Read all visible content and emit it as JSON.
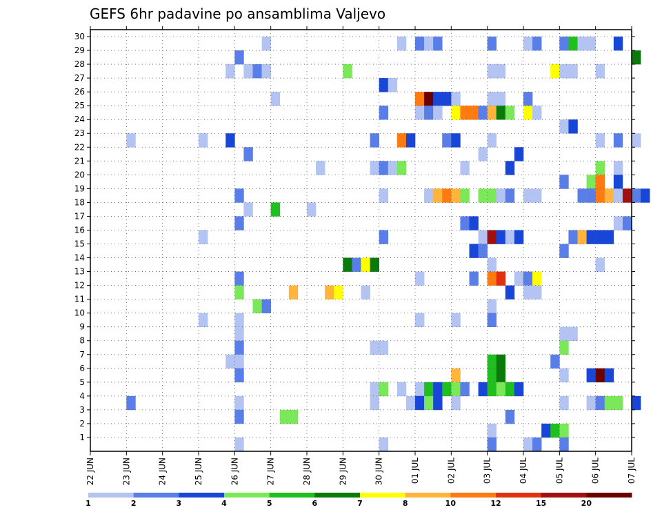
{
  "chart_data": {
    "type": "heatmap",
    "title": "GEFS 6hr padavine po ansamblima Valjevo",
    "y_ticks": [
      "1",
      "2",
      "3",
      "4",
      "5",
      "6",
      "7",
      "8",
      "9",
      "10",
      "11",
      "12",
      "13",
      "14",
      "15",
      "16",
      "17",
      "18",
      "19",
      "20",
      "21",
      "22",
      "23",
      "24",
      "25",
      "26",
      "27",
      "28",
      "29",
      "30"
    ],
    "x_ticks": [
      "22 JUN",
      "23 JUN",
      "24 JUN",
      "25 JUN",
      "26 JUN",
      "27 JUN",
      "28 JUN",
      "29 JUN",
      "30 JUN",
      "01 JUL",
      "02 JUL",
      "03 JUL",
      "04 JUL",
      "05 JUL",
      "06 JUL",
      "07 JUL"
    ],
    "x_step": "6 h",
    "colorbar": {
      "labels": [
        "1",
        "2",
        "3",
        "4",
        "5",
        "6",
        "7",
        "8",
        "10",
        "12",
        "15",
        "20"
      ],
      "colors": [
        "#b3c3f2",
        "#5a7ee8",
        "#1846d6",
        "#7be85a",
        "#1fbf1f",
        "#0a7a0a",
        "#ffff00",
        "#ffb43c",
        "#ff7a10",
        "#e03010",
        "#a01010",
        "#6b0000"
      ]
    },
    "grid": true,
    "cells": [
      {
        "m": 30,
        "x": "26 JUN 18z",
        "v": 1
      },
      {
        "m": 30,
        "x": "30 JUN 12z",
        "v": 1
      },
      {
        "m": 30,
        "x": "01 JUL 00z",
        "v": 2
      },
      {
        "m": 30,
        "x": "01 JUL 06z",
        "v": 1
      },
      {
        "m": 30,
        "x": "01 JUL 12z",
        "v": 2
      },
      {
        "m": 30,
        "x": "03 JUL 00z",
        "v": 2
      },
      {
        "m": 30,
        "x": "04 JUL 00z",
        "v": 1
      },
      {
        "m": 30,
        "x": "04 JUL 06z",
        "v": 2
      },
      {
        "m": 30,
        "x": "05 JUL 00z",
        "v": 2
      },
      {
        "m": 30,
        "x": "05 JUL 06z",
        "v": 5
      },
      {
        "m": 30,
        "x": "05 JUL 12z",
        "v": 1
      },
      {
        "m": 30,
        "x": "05 JUL 18z",
        "v": 1
      },
      {
        "m": 30,
        "x": "06 JUL 12z",
        "v": 3
      },
      {
        "m": 29,
        "x": "26 JUN 00z",
        "v": 2
      },
      {
        "m": 29,
        "x": "07 JUL 00z",
        "v": 6
      },
      {
        "m": 28,
        "x": "25 JUN 18z",
        "v": 1
      },
      {
        "m": 28,
        "x": "26 JUN 06z",
        "v": 1
      },
      {
        "m": 28,
        "x": "26 JUN 12z",
        "v": 2
      },
      {
        "m": 28,
        "x": "26 JUN 18z",
        "v": 1
      },
      {
        "m": 28,
        "x": "29 JUN 00z",
        "v": 4
      },
      {
        "m": 28,
        "x": "03 JUL 00z",
        "v": 1
      },
      {
        "m": 28,
        "x": "03 JUL 06z",
        "v": 1
      },
      {
        "m": 28,
        "x": "04 JUL 18z",
        "v": 7
      },
      {
        "m": 28,
        "x": "05 JUL 00z",
        "v": 1
      },
      {
        "m": 28,
        "x": "05 JUL 06z",
        "v": 1
      },
      {
        "m": 28,
        "x": "06 JUL 00z",
        "v": 1
      },
      {
        "m": 27,
        "x": "30 JUN 00z",
        "v": 3
      },
      {
        "m": 27,
        "x": "30 JUN 06z",
        "v": 1
      },
      {
        "m": 26,
        "x": "27 JUN 00z",
        "v": 1
      },
      {
        "m": 26,
        "x": "01 JUL 00z",
        "v": 9
      },
      {
        "m": 26,
        "x": "01 JUL 06z",
        "v": 12
      },
      {
        "m": 26,
        "x": "01 JUL 12z",
        "v": 3
      },
      {
        "m": 26,
        "x": "01 JUL 18z",
        "v": 3
      },
      {
        "m": 26,
        "x": "02 JUL 00z",
        "v": 1
      },
      {
        "m": 26,
        "x": "03 JUL 00z",
        "v": 1
      },
      {
        "m": 26,
        "x": "03 JUL 06z",
        "v": 1
      },
      {
        "m": 26,
        "x": "04 JUL 00z",
        "v": 2
      },
      {
        "m": 25,
        "x": "30 JUN 00z",
        "v": 2
      },
      {
        "m": 25,
        "x": "01 JUL 00z",
        "v": 1
      },
      {
        "m": 25,
        "x": "01 JUL 06z",
        "v": 2
      },
      {
        "m": 25,
        "x": "01 JUL 12z",
        "v": 1
      },
      {
        "m": 25,
        "x": "02 JUL 00z",
        "v": 7
      },
      {
        "m": 25,
        "x": "02 JUL 06z",
        "v": 9
      },
      {
        "m": 25,
        "x": "02 JUL 12z",
        "v": 9
      },
      {
        "m": 25,
        "x": "02 JUL 18z",
        "v": 2
      },
      {
        "m": 25,
        "x": "03 JUL 00z",
        "v": 8
      },
      {
        "m": 25,
        "x": "03 JUL 06z",
        "v": 6
      },
      {
        "m": 25,
        "x": "03 JUL 12z",
        "v": 4
      },
      {
        "m": 25,
        "x": "04 JUL 00z",
        "v": 7
      },
      {
        "m": 25,
        "x": "04 JUL 06z",
        "v": 1
      },
      {
        "m": 24,
        "x": "05 JUL 00z",
        "v": 1
      },
      {
        "m": 24,
        "x": "05 JUL 06z",
        "v": 3
      },
      {
        "m": 23,
        "x": "23 JUN 00z",
        "v": 1
      },
      {
        "m": 23,
        "x": "25 JUN 00z",
        "v": 1
      },
      {
        "m": 23,
        "x": "25 JUN 18z",
        "v": 3
      },
      {
        "m": 23,
        "x": "29 JUN 18z",
        "v": 2
      },
      {
        "m": 23,
        "x": "30 JUN 12z",
        "v": 9
      },
      {
        "m": 23,
        "x": "30 JUN 18z",
        "v": 3
      },
      {
        "m": 23,
        "x": "01 JUL 18z",
        "v": 2
      },
      {
        "m": 23,
        "x": "02 JUL 00z",
        "v": 3
      },
      {
        "m": 23,
        "x": "03 JUL 00z",
        "v": 1
      },
      {
        "m": 23,
        "x": "06 JUL 00z",
        "v": 1
      },
      {
        "m": 23,
        "x": "06 JUL 12z",
        "v": 2
      },
      {
        "m": 23,
        "x": "07 JUL 00z",
        "v": 1
      },
      {
        "m": 22,
        "x": "26 JUN 06z",
        "v": 2
      },
      {
        "m": 22,
        "x": "02 JUL 18z",
        "v": 1
      },
      {
        "m": 22,
        "x": "03 JUL 18z",
        "v": 3
      },
      {
        "m": 21,
        "x": "28 JUN 06z",
        "v": 1
      },
      {
        "m": 21,
        "x": "29 JUN 18z",
        "v": 1
      },
      {
        "m": 21,
        "x": "30 JUN 00z",
        "v": 2
      },
      {
        "m": 21,
        "x": "30 JUN 06z",
        "v": 1
      },
      {
        "m": 21,
        "x": "30 JUN 12z",
        "v": 4
      },
      {
        "m": 21,
        "x": "02 JUL 06z",
        "v": 1
      },
      {
        "m": 21,
        "x": "03 JUL 12z",
        "v": 3
      },
      {
        "m": 21,
        "x": "06 JUL 00z",
        "v": 4
      },
      {
        "m": 21,
        "x": "06 JUL 12z",
        "v": 1
      },
      {
        "m": 20,
        "x": "05 JUL 00z",
        "v": 2
      },
      {
        "m": 20,
        "x": "05 JUL 18z",
        "v": 4
      },
      {
        "m": 20,
        "x": "06 JUL 00z",
        "v": 9
      },
      {
        "m": 20,
        "x": "06 JUL 12z",
        "v": 3
      },
      {
        "m": 19,
        "x": "26 JUN 00z",
        "v": 2
      },
      {
        "m": 19,
        "x": "30 JUN 00z",
        "v": 1
      },
      {
        "m": 19,
        "x": "01 JUL 06z",
        "v": 1
      },
      {
        "m": 19,
        "x": "01 JUL 12z",
        "v": 8
      },
      {
        "m": 19,
        "x": "01 JUL 18z",
        "v": 9
      },
      {
        "m": 19,
        "x": "02 JUL 00z",
        "v": 8
      },
      {
        "m": 19,
        "x": "02 JUL 06z",
        "v": 4
      },
      {
        "m": 19,
        "x": "02 JUL 18z",
        "v": 4
      },
      {
        "m": 19,
        "x": "03 JUL 00z",
        "v": 4
      },
      {
        "m": 19,
        "x": "03 JUL 06z",
        "v": 1
      },
      {
        "m": 19,
        "x": "03 JUL 12z",
        "v": 2
      },
      {
        "m": 19,
        "x": "04 JUL 00z",
        "v": 1
      },
      {
        "m": 19,
        "x": "04 JUL 06z",
        "v": 1
      },
      {
        "m": 19,
        "x": "05 JUL 12z",
        "v": 2
      },
      {
        "m": 19,
        "x": "05 JUL 18z",
        "v": 2
      },
      {
        "m": 19,
        "x": "06 JUL 00z",
        "v": 9
      },
      {
        "m": 19,
        "x": "06 JUL 06z",
        "v": 8
      },
      {
        "m": 19,
        "x": "06 JUL 12z",
        "v": 1
      },
      {
        "m": 19,
        "x": "06 JUL 18z",
        "v": 11
      },
      {
        "m": 19,
        "x": "07 JUL 00z",
        "v": 2
      },
      {
        "m": 19,
        "x": "07 JUL 06z",
        "v": 3
      },
      {
        "m": 18,
        "x": "26 JUN 06z",
        "v": 1
      },
      {
        "m": 18,
        "x": "27 JUN 00z",
        "v": 5
      },
      {
        "m": 18,
        "x": "28 JUN 00z",
        "v": 1
      },
      {
        "m": 17,
        "x": "26 JUN 00z",
        "v": 2
      },
      {
        "m": 17,
        "x": "02 JUL 06z",
        "v": 2
      },
      {
        "m": 17,
        "x": "02 JUL 12z",
        "v": 3
      },
      {
        "m": 17,
        "x": "06 JUL 12z",
        "v": 1
      },
      {
        "m": 17,
        "x": "06 JUL 18z",
        "v": 2
      },
      {
        "m": 16,
        "x": "25 JUN 00z",
        "v": 1
      },
      {
        "m": 16,
        "x": "30 JUN 00z",
        "v": 2
      },
      {
        "m": 16,
        "x": "02 JUL 18z",
        "v": 1
      },
      {
        "m": 16,
        "x": "03 JUL 00z",
        "v": 11
      },
      {
        "m": 16,
        "x": "03 JUL 06z",
        "v": 3
      },
      {
        "m": 16,
        "x": "03 JUL 12z",
        "v": 1
      },
      {
        "m": 16,
        "x": "03 JUL 18z",
        "v": 3
      },
      {
        "m": 16,
        "x": "05 JUL 06z",
        "v": 2
      },
      {
        "m": 16,
        "x": "05 JUL 12z",
        "v": 8
      },
      {
        "m": 16,
        "x": "05 JUL 18z",
        "v": 3
      },
      {
        "m": 16,
        "x": "06 JUL 00z",
        "v": 3
      },
      {
        "m": 16,
        "x": "06 JUL 06z",
        "v": 3
      },
      {
        "m": 15,
        "x": "02 JUL 12z",
        "v": 3
      },
      {
        "m": 15,
        "x": "02 JUL 18z",
        "v": 2
      },
      {
        "m": 15,
        "x": "05 JUL 00z",
        "v": 2
      },
      {
        "m": 14,
        "x": "29 JUN 00z",
        "v": 6
      },
      {
        "m": 14,
        "x": "29 JUN 06z",
        "v": 2
      },
      {
        "m": 14,
        "x": "29 JUN 12z",
        "v": 7
      },
      {
        "m": 14,
        "x": "29 JUN 18z",
        "v": 6
      },
      {
        "m": 14,
        "x": "03 JUL 00z",
        "v": 1
      },
      {
        "m": 14,
        "x": "06 JUL 00z",
        "v": 1
      },
      {
        "m": 13,
        "x": "26 JUN 00z",
        "v": 2
      },
      {
        "m": 13,
        "x": "01 JUL 00z",
        "v": 1
      },
      {
        "m": 13,
        "x": "02 JUL 12z",
        "v": 2
      },
      {
        "m": 13,
        "x": "03 JUL 00z",
        "v": 9
      },
      {
        "m": 13,
        "x": "03 JUL 06z",
        "v": 10
      },
      {
        "m": 13,
        "x": "03 JUL 18z",
        "v": 1
      },
      {
        "m": 13,
        "x": "04 JUL 00z",
        "v": 2
      },
      {
        "m": 13,
        "x": "04 JUL 06z",
        "v": 7
      },
      {
        "m": 12,
        "x": "26 JUN 00z",
        "v": 4
      },
      {
        "m": 12,
        "x": "27 JUN 12z",
        "v": 8
      },
      {
        "m": 12,
        "x": "28 JUN 12z",
        "v": 8
      },
      {
        "m": 12,
        "x": "28 JUN 18z",
        "v": 7
      },
      {
        "m": 12,
        "x": "29 JUN 12z",
        "v": 1
      },
      {
        "m": 12,
        "x": "03 JUL 12z",
        "v": 3
      },
      {
        "m": 12,
        "x": "04 JUL 00z",
        "v": 1
      },
      {
        "m": 12,
        "x": "04 JUL 06z",
        "v": 1
      },
      {
        "m": 11,
        "x": "26 JUN 12z",
        "v": 4
      },
      {
        "m": 11,
        "x": "26 JUN 18z",
        "v": 2
      },
      {
        "m": 11,
        "x": "03 JUL 00z",
        "v": 1
      },
      {
        "m": 10,
        "x": "25 JUN 00z",
        "v": 1
      },
      {
        "m": 10,
        "x": "26 JUN 00z",
        "v": 1
      },
      {
        "m": 10,
        "x": "01 JUL 00z",
        "v": 1
      },
      {
        "m": 10,
        "x": "02 JUL 00z",
        "v": 1
      },
      {
        "m": 10,
        "x": "03 JUL 00z",
        "v": 2
      },
      {
        "m": 9,
        "x": "26 JUN 00z",
        "v": 1
      },
      {
        "m": 9,
        "x": "05 JUL 00z",
        "v": 1
      },
      {
        "m": 9,
        "x": "05 JUL 06z",
        "v": 1
      },
      {
        "m": 8,
        "x": "26 JUN 00z",
        "v": 2
      },
      {
        "m": 8,
        "x": "29 JUN 18z",
        "v": 1
      },
      {
        "m": 8,
        "x": "30 JUN 00z",
        "v": 1
      },
      {
        "m": 8,
        "x": "05 JUL 00z",
        "v": 4
      },
      {
        "m": 7,
        "x": "25 JUN 18z",
        "v": 1
      },
      {
        "m": 7,
        "x": "26 JUN 00z",
        "v": 1
      },
      {
        "m": 7,
        "x": "03 JUL 00z",
        "v": 5
      },
      {
        "m": 7,
        "x": "03 JUL 06z",
        "v": 6
      },
      {
        "m": 7,
        "x": "04 JUL 18z",
        "v": 2
      },
      {
        "m": 6,
        "x": "26 JUN 00z",
        "v": 2
      },
      {
        "m": 6,
        "x": "02 JUL 00z",
        "v": 8
      },
      {
        "m": 6,
        "x": "03 JUL 00z",
        "v": 5
      },
      {
        "m": 6,
        "x": "03 JUL 06z",
        "v": 6
      },
      {
        "m": 6,
        "x": "05 JUL 00z",
        "v": 1
      },
      {
        "m": 6,
        "x": "05 JUL 18z",
        "v": 3
      },
      {
        "m": 6,
        "x": "06 JUL 00z",
        "v": 12
      },
      {
        "m": 6,
        "x": "06 JUL 06z",
        "v": 3
      },
      {
        "m": 5,
        "x": "29 JUN 18z",
        "v": 1
      },
      {
        "m": 5,
        "x": "30 JUN 00z",
        "v": 4
      },
      {
        "m": 5,
        "x": "30 JUN 12z",
        "v": 1
      },
      {
        "m": 5,
        "x": "01 JUL 00z",
        "v": 1
      },
      {
        "m": 5,
        "x": "01 JUL 06z",
        "v": 5
      },
      {
        "m": 5,
        "x": "01 JUL 12z",
        "v": 3
      },
      {
        "m": 5,
        "x": "01 JUL 18z",
        "v": 5
      },
      {
        "m": 5,
        "x": "02 JUL 00z",
        "v": 4
      },
      {
        "m": 5,
        "x": "02 JUL 06z",
        "v": 2
      },
      {
        "m": 5,
        "x": "02 JUL 18z",
        "v": 3
      },
      {
        "m": 5,
        "x": "03 JUL 00z",
        "v": 5
      },
      {
        "m": 5,
        "x": "03 JUL 06z",
        "v": 4
      },
      {
        "m": 5,
        "x": "03 JUL 12z",
        "v": 5
      },
      {
        "m": 5,
        "x": "03 JUL 18z",
        "v": 3
      },
      {
        "m": 4,
        "x": "23 JUN 00z",
        "v": 2
      },
      {
        "m": 4,
        "x": "26 JUN 00z",
        "v": 1
      },
      {
        "m": 4,
        "x": "29 JUN 18z",
        "v": 1
      },
      {
        "m": 4,
        "x": "30 JUN 18z",
        "v": 1
      },
      {
        "m": 4,
        "x": "01 JUL 00z",
        "v": 3
      },
      {
        "m": 4,
        "x": "01 JUL 06z",
        "v": 4
      },
      {
        "m": 4,
        "x": "01 JUL 12z",
        "v": 3
      },
      {
        "m": 4,
        "x": "02 JUL 00z",
        "v": 1
      },
      {
        "m": 4,
        "x": "05 JUL 00z",
        "v": 1
      },
      {
        "m": 4,
        "x": "05 JUL 18z",
        "v": 1
      },
      {
        "m": 4,
        "x": "06 JUL 00z",
        "v": 2
      },
      {
        "m": 4,
        "x": "06 JUL 06z",
        "v": 4
      },
      {
        "m": 4,
        "x": "06 JUL 12z",
        "v": 4
      },
      {
        "m": 4,
        "x": "07 JUL 00z",
        "v": 3
      },
      {
        "m": 3,
        "x": "26 JUN 00z",
        "v": 2
      },
      {
        "m": 3,
        "x": "27 JUN 06z",
        "v": 4
      },
      {
        "m": 3,
        "x": "27 JUN 12z",
        "v": 4
      },
      {
        "m": 3,
        "x": "03 JUL 12z",
        "v": 2
      },
      {
        "m": 2,
        "x": "03 JUL 00z",
        "v": 1
      },
      {
        "m": 2,
        "x": "04 JUL 12z",
        "v": 3
      },
      {
        "m": 2,
        "x": "04 JUL 18z",
        "v": 5
      },
      {
        "m": 2,
        "x": "05 JUL 00z",
        "v": 4
      },
      {
        "m": 1,
        "x": "26 JUN 00z",
        "v": 1
      },
      {
        "m": 1,
        "x": "30 JUN 00z",
        "v": 1
      },
      {
        "m": 1,
        "x": "03 JUL 00z",
        "v": 2
      },
      {
        "m": 1,
        "x": "04 JUL 00z",
        "v": 1
      },
      {
        "m": 1,
        "x": "04 JUL 06z",
        "v": 2
      },
      {
        "m": 1,
        "x": "05 JUL 00z",
        "v": 2
      }
    ]
  }
}
